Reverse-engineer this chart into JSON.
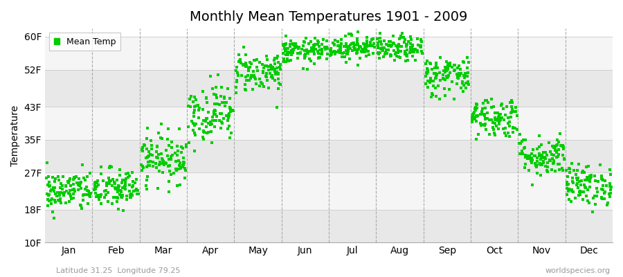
{
  "title": "Monthly Mean Temperatures 1901 - 2009",
  "ylabel": "Temperature",
  "xlabel_labels": [
    "Jan",
    "Feb",
    "Mar",
    "Apr",
    "May",
    "Jun",
    "Jul",
    "Aug",
    "Sep",
    "Oct",
    "Nov",
    "Dec"
  ],
  "yticks": [
    10,
    18,
    27,
    35,
    43,
    52,
    60
  ],
  "ytick_labels": [
    "10F",
    "18F",
    "27F",
    "35F",
    "43F",
    "52F",
    "60F"
  ],
  "ylim": [
    10,
    62
  ],
  "dot_color": "#00cc00",
  "dot_size": 7,
  "background_color": "#ffffff",
  "plot_bg_light": "#f5f5f5",
  "plot_bg_dark": "#e8e8e8",
  "grid_color": "#cccccc",
  "vline_color": "#aaaaaa",
  "title_fontsize": 14,
  "axis_fontsize": 10,
  "tick_fontsize": 10,
  "legend_label": "Mean Temp",
  "footer_left": "Latitude 31.25  Longitude 79.25",
  "footer_right": "worldspecies.org",
  "years": 109,
  "monthly_means": [
    22.5,
    23.0,
    30.5,
    41.5,
    51.5,
    56.5,
    57.5,
    57.0,
    50.5,
    40.5,
    31.0,
    24.0
  ],
  "monthly_stds": [
    2.5,
    2.5,
    3.0,
    3.5,
    2.5,
    1.5,
    1.5,
    1.5,
    2.5,
    2.5,
    2.5,
    2.5
  ],
  "seed": 42
}
